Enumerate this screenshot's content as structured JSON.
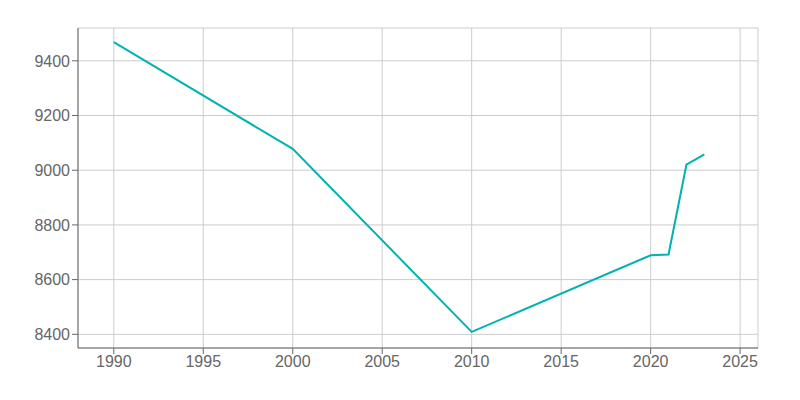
{
  "chart_data": {
    "type": "line",
    "x": [
      1990,
      2000,
      2010,
      2020,
      2021,
      2022,
      2023
    ],
    "values": [
      9468,
      9078,
      8409,
      8689,
      8692,
      9020,
      9058
    ],
    "color": "#00b3b3",
    "xlim": [
      1988,
      2026
    ],
    "ylim": [
      8350,
      9520
    ],
    "xticks": [
      1990,
      1995,
      2000,
      2005,
      2010,
      2015,
      2020,
      2025
    ],
    "yticks": [
      8400,
      8600,
      8800,
      9000,
      9200,
      9400
    ],
    "grid": true
  }
}
